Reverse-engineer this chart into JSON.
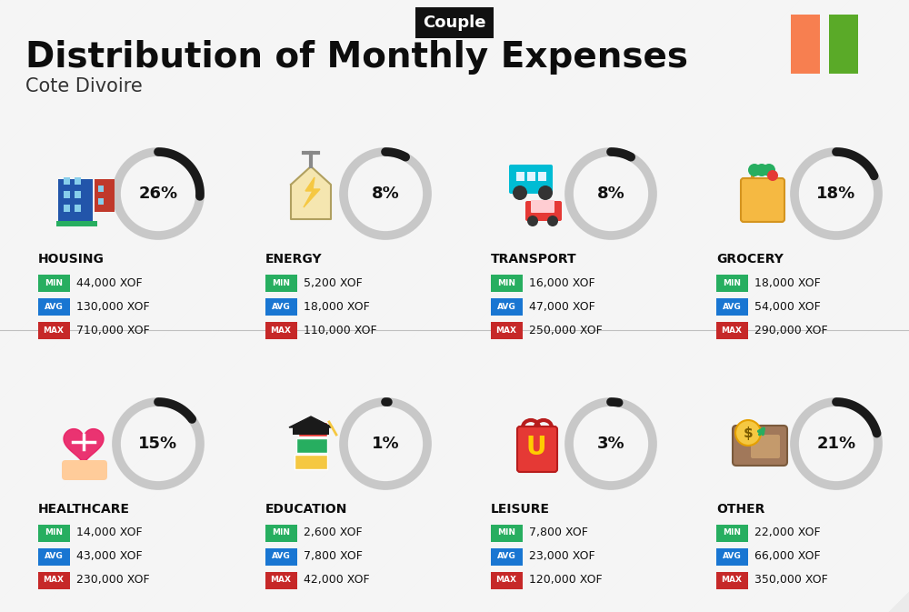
{
  "title": "Distribution of Monthly Expenses",
  "subtitle": "Cote Divoire",
  "badge": "Couple",
  "bg_color": "#ebebeb",
  "stripe_color": "#ffffff",
  "flag_colors": [
    "#F77F50",
    "#5aaa28"
  ],
  "categories": [
    {
      "name": "HOUSING",
      "pct": 26,
      "min": "44,000 XOF",
      "avg": "130,000 XOF",
      "max": "710,000 XOF",
      "icon_color": "#2255aa"
    },
    {
      "name": "ENERGY",
      "pct": 8,
      "min": "5,200 XOF",
      "avg": "18,000 XOF",
      "max": "110,000 XOF",
      "icon_color": "#f5c842"
    },
    {
      "name": "TRANSPORT",
      "pct": 8,
      "min": "16,000 XOF",
      "avg": "47,000 XOF",
      "max": "250,000 XOF",
      "icon_color": "#00bcd4"
    },
    {
      "name": "GROCERY",
      "pct": 18,
      "min": "18,000 XOF",
      "avg": "54,000 XOF",
      "max": "290,000 XOF",
      "icon_color": "#ff9800"
    },
    {
      "name": "HEALTHCARE",
      "pct": 15,
      "min": "14,000 XOF",
      "avg": "43,000 XOF",
      "max": "230,000 XOF",
      "icon_color": "#e91e63"
    },
    {
      "name": "EDUCATION",
      "pct": 1,
      "min": "2,600 XOF",
      "avg": "7,800 XOF",
      "max": "42,000 XOF",
      "icon_color": "#ff5722"
    },
    {
      "name": "LEISURE",
      "pct": 3,
      "min": "7,800 XOF",
      "avg": "23,000 XOF",
      "max": "120,000 XOF",
      "icon_color": "#e53935"
    },
    {
      "name": "OTHER",
      "pct": 21,
      "min": "22,000 XOF",
      "avg": "66,000 XOF",
      "max": "350,000 XOF",
      "icon_color": "#8d6e63"
    }
  ],
  "min_color": "#27ae60",
  "avg_color": "#1976D2",
  "max_color": "#c62828",
  "arc_dark_color": "#1a1a1a",
  "arc_bg_color": "#c8c8c8",
  "label_font_size": 9,
  "category_font_size": 10,
  "pct_font_size": 13
}
